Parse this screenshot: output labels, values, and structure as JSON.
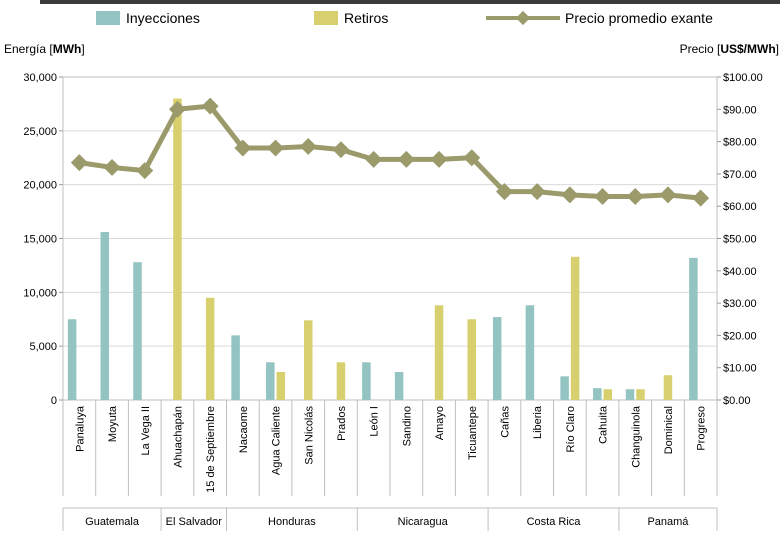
{
  "chart_data": {
    "type": "bar",
    "xlabel": "",
    "ylabel": "Energía [MWh]",
    "ylabel_prefix": "Energía [",
    "ylabel_bold": "MWh",
    "ylabel_suffix": "]",
    "y2label": "Precio [US$/MWh]",
    "y2label_prefix": "Precio [",
    "y2label_bold": "US$/MWh",
    "y2label_suffix": "]",
    "ylim": [
      0,
      30000
    ],
    "y2lim": [
      0,
      100
    ],
    "yticks": [
      "0",
      "5,000",
      "10,000",
      "15,000",
      "20,000",
      "25,000",
      "30,000"
    ],
    "y2ticks": [
      "$0.00",
      "$10.00",
      "$20.00",
      "$30.00",
      "$40.00",
      "$50.00",
      "$60.00",
      "$70.00",
      "$80.00",
      "$90.00",
      "$100.00"
    ],
    "grid": true,
    "legend_position": "top",
    "categories": [
      "Panaluya",
      "Moyuta",
      "La Vega II",
      "Ahuachapán",
      "15 de Septiembre",
      "Nacaome",
      "Agua Caliente",
      "San Nicolás",
      "Prados",
      "León I",
      "Sandino",
      "Amayo",
      "Ticuantepe",
      "Cañas",
      "Liberia",
      "Río Claro",
      "Cahuita",
      "Changuinola",
      "Dominical",
      "Progreso"
    ],
    "groups": [
      {
        "name": "Guatemala",
        "count": 3
      },
      {
        "name": "El Salvador",
        "count": 2
      },
      {
        "name": "Honduras",
        "count": 4
      },
      {
        "name": "Nicaragua",
        "count": 4
      },
      {
        "name": "Costa Rica",
        "count": 4
      },
      {
        "name": "Panamá",
        "count": 3
      }
    ],
    "series": [
      {
        "name": "Inyecciones",
        "kind": "bar",
        "axis": "left",
        "color": "#93c4c2",
        "values": [
          7500,
          15600,
          12800,
          0,
          0,
          6000,
          3500,
          0,
          0,
          3500,
          2600,
          0,
          0,
          7700,
          8800,
          2200,
          1100,
          1000,
          0,
          13200
        ]
      },
      {
        "name": "Retiros",
        "kind": "bar",
        "axis": "left",
        "color": "#d8d06e",
        "values": [
          0,
          0,
          0,
          28000,
          9500,
          0,
          2600,
          7400,
          3500,
          0,
          0,
          8800,
          7500,
          0,
          0,
          13300,
          1000,
          1000,
          2300,
          0
        ]
      },
      {
        "name": "Precio promedio exante",
        "kind": "line",
        "axis": "right",
        "color": "#9b9a6b",
        "values": [
          73.5,
          72.0,
          71.0,
          90.0,
          91.0,
          78.0,
          78.0,
          78.5,
          77.5,
          74.5,
          74.5,
          74.5,
          75.0,
          64.5,
          64.5,
          63.5,
          63.0,
          63.0,
          63.5,
          62.5
        ]
      }
    ]
  }
}
